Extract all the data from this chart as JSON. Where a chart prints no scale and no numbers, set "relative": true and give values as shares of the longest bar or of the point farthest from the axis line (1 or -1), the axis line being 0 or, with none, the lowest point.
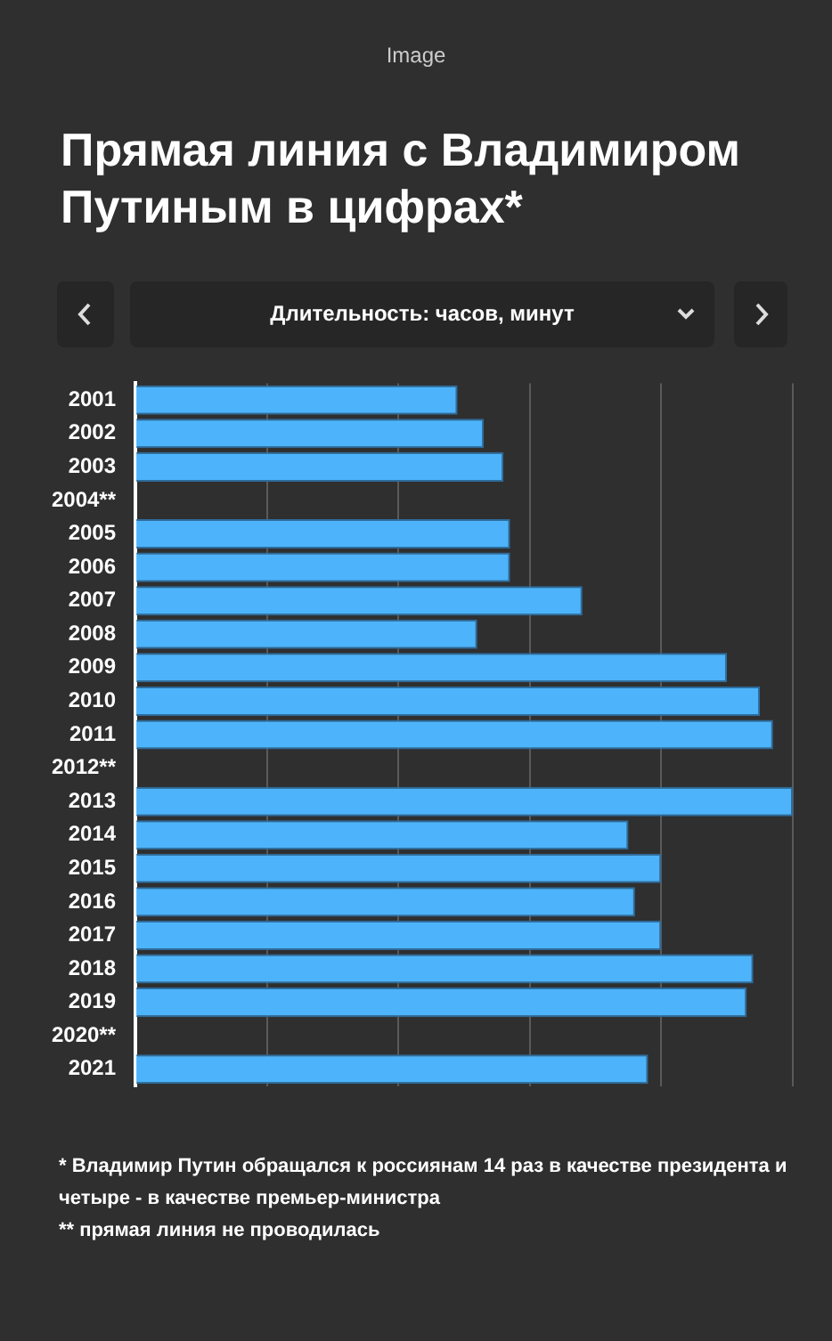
{
  "chart_data": {
    "type": "bar",
    "orientation": "horizontal",
    "relative": true,
    "title": "Прямая линия с Владимиром Путиным в цифрах*",
    "subtitle": "Длительность: часов, минут",
    "categories": [
      "2001",
      "2002",
      "2003",
      "2004**",
      "2005",
      "2006",
      "2007",
      "2008",
      "2009",
      "2010",
      "2011",
      "2012**",
      "2013",
      "2014",
      "2015",
      "2016",
      "2017",
      "2018",
      "2019",
      "2020**",
      "2021"
    ],
    "values": [
      0.49,
      0.53,
      0.56,
      null,
      0.57,
      0.57,
      0.68,
      0.52,
      0.9,
      0.95,
      0.97,
      null,
      1,
      0.75,
      0.8,
      0.76,
      0.8,
      0.94,
      0.93,
      null,
      0.78
    ],
    "color": "#4db4fb",
    "grid": "x",
    "legend": false,
    "annotations": [
      "Image",
      "* Владимир Путин обращался к россиянам 14 раз в качестве президента и четыре - в качестве премьер-министра",
      "** прямая линия не проводилась"
    ]
  }
}
